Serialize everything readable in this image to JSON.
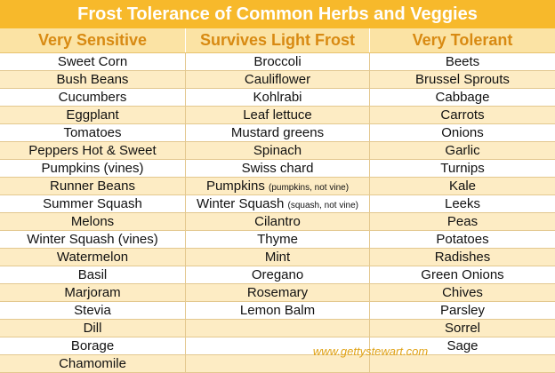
{
  "title": "Frost Tolerance of Common Herbs and Veggies",
  "headers": [
    "Very Sensitive",
    "Survives Light Frost",
    "Very Tolerant"
  ],
  "rows": [
    [
      {
        "t": "Sweet Corn",
        "s": ""
      },
      {
        "t": "Broccoli",
        "s": ""
      },
      {
        "t": "Beets",
        "s": ""
      }
    ],
    [
      {
        "t": "Bush Beans",
        "s": ""
      },
      {
        "t": "Cauliflower",
        "s": ""
      },
      {
        "t": "Brussel Sprouts",
        "s": ""
      }
    ],
    [
      {
        "t": "Cucumbers",
        "s": ""
      },
      {
        "t": "Kohlrabi",
        "s": ""
      },
      {
        "t": "Cabbage",
        "s": ""
      }
    ],
    [
      {
        "t": "Eggplant",
        "s": ""
      },
      {
        "t": "Leaf lettuce",
        "s": ""
      },
      {
        "t": "Carrots",
        "s": ""
      }
    ],
    [
      {
        "t": "Tomatoes",
        "s": ""
      },
      {
        "t": "Mustard greens",
        "s": ""
      },
      {
        "t": "Onions",
        "s": ""
      }
    ],
    [
      {
        "t": "Peppers Hot & Sweet",
        "s": ""
      },
      {
        "t": "Spinach",
        "s": ""
      },
      {
        "t": "Garlic",
        "s": ""
      }
    ],
    [
      {
        "t": "Pumpkins (vines)",
        "s": ""
      },
      {
        "t": "Swiss chard",
        "s": ""
      },
      {
        "t": "Turnips",
        "s": ""
      }
    ],
    [
      {
        "t": "Runner Beans",
        "s": ""
      },
      {
        "t": "Pumpkins ",
        "s": "(pumpkins, not vine)"
      },
      {
        "t": "Kale",
        "s": ""
      }
    ],
    [
      {
        "t": "Summer Squash",
        "s": ""
      },
      {
        "t": "Winter Squash ",
        "s": "(squash, not vine)"
      },
      {
        "t": "Leeks",
        "s": ""
      }
    ],
    [
      {
        "t": "Melons",
        "s": ""
      },
      {
        "t": "Cilantro",
        "s": ""
      },
      {
        "t": "Peas",
        "s": ""
      }
    ],
    [
      {
        "t": "Winter Squash (vines)",
        "s": ""
      },
      {
        "t": "Thyme",
        "s": ""
      },
      {
        "t": "Potatoes",
        "s": ""
      }
    ],
    [
      {
        "t": "Watermelon",
        "s": ""
      },
      {
        "t": "Mint",
        "s": ""
      },
      {
        "t": "Radishes",
        "s": ""
      }
    ],
    [
      {
        "t": "Basil",
        "s": ""
      },
      {
        "t": "Oregano",
        "s": ""
      },
      {
        "t": "Green Onions",
        "s": ""
      }
    ],
    [
      {
        "t": "Marjoram",
        "s": ""
      },
      {
        "t": "Rosemary",
        "s": ""
      },
      {
        "t": "Chives",
        "s": ""
      }
    ],
    [
      {
        "t": "Stevia",
        "s": ""
      },
      {
        "t": "Lemon Balm",
        "s": ""
      },
      {
        "t": "Parsley",
        "s": ""
      }
    ],
    [
      {
        "t": "Dill",
        "s": ""
      },
      {
        "t": "",
        "s": ""
      },
      {
        "t": "Sorrel",
        "s": ""
      }
    ],
    [
      {
        "t": "Borage",
        "s": ""
      },
      {
        "t": "",
        "s": ""
      },
      {
        "t": "Sage",
        "s": ""
      }
    ],
    [
      {
        "t": "Chamomile",
        "s": ""
      },
      {
        "t": "",
        "s": ""
      },
      {
        "t": "",
        "s": ""
      }
    ]
  ],
  "credit": "www.gettystewart.com",
  "colors": {
    "title_bg": "#f7b92b",
    "header_bg": "#fbe3a4",
    "header_text": "#d88a12",
    "stripe": "#fdecc4"
  }
}
